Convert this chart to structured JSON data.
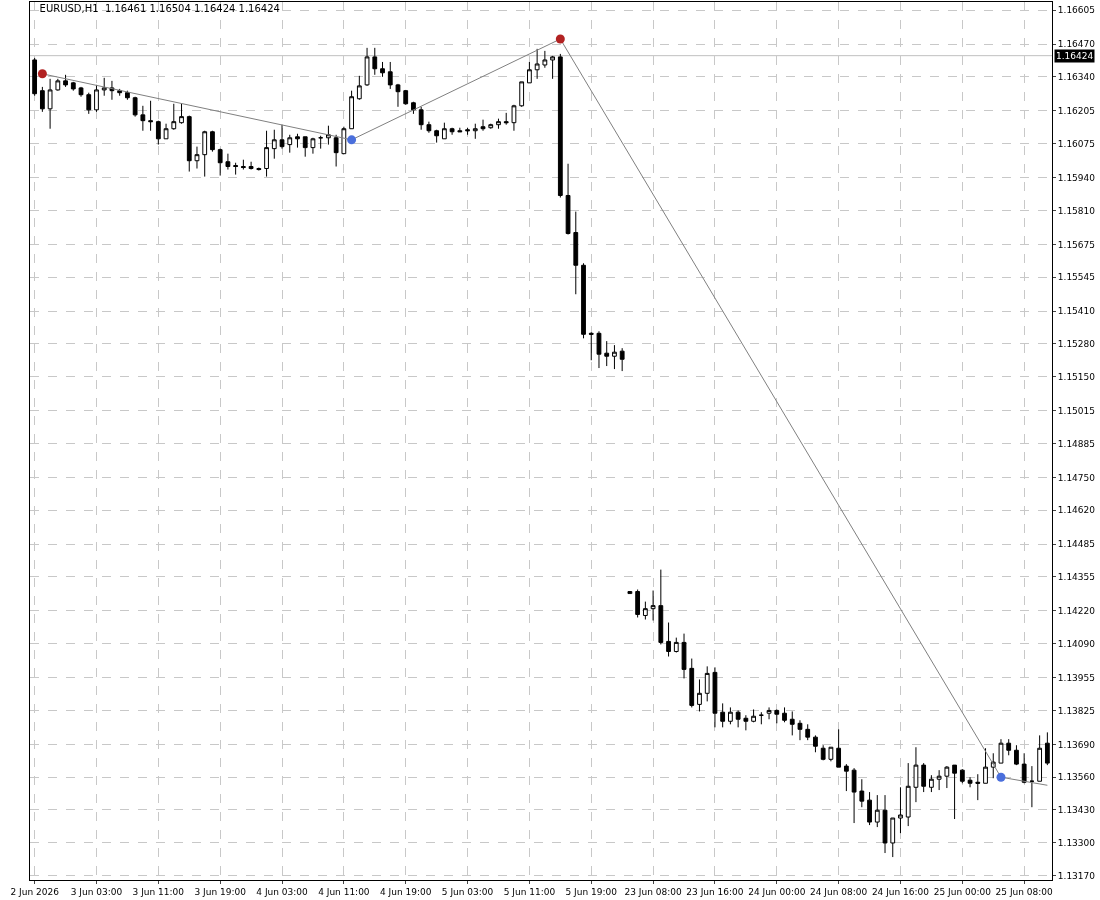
{
  "chart_data": {
    "type": "candlestick",
    "title": "EURUSD,H1  1.16461 1.16504 1.16424 1.16424",
    "categories": [
      "2 Jun 2026",
      null,
      null,
      null,
      null,
      null,
      null,
      null,
      "3 Jun 03:00",
      null,
      null,
      null,
      null,
      null,
      null,
      null,
      "3 Jun 11:00",
      null,
      null,
      null,
      null,
      null,
      null,
      null,
      "3 Jun 19:00",
      null,
      null,
      null,
      null,
      null,
      null,
      null,
      "4 Jun 03:00",
      null,
      null,
      null,
      null,
      null,
      null,
      null,
      "4 Jun 11:00",
      null,
      null,
      null,
      null,
      null,
      null,
      null,
      "4 Jun 19:00",
      null,
      null,
      null,
      null,
      null,
      null,
      null,
      "5 Jun 03:00",
      null,
      null,
      null,
      null,
      null,
      null,
      null,
      "5 Jun 11:00",
      null,
      null,
      null,
      null,
      null,
      null,
      null,
      "5 Jun 19:00",
      null,
      null,
      null,
      null,
      null,
      null,
      null,
      "23 Jun 08:00",
      null,
      null,
      null,
      null,
      null,
      null,
      null,
      "23 Jun 16:00",
      null,
      null,
      null,
      null,
      null,
      null,
      null,
      "24 Jun 00:00",
      null,
      null,
      null,
      null,
      null,
      null,
      null,
      "24 Jun 08:00",
      null,
      null,
      null,
      null,
      null,
      null,
      null,
      "24 Jun 16:00",
      null,
      null,
      null,
      null,
      null,
      null,
      null,
      "25 Jun 00:00",
      null,
      null,
      null,
      null,
      null,
      null,
      null,
      "25 Jun 08:00",
      null,
      null,
      null
    ],
    "ohlc": [
      [
        1.16407,
        1.16415,
        1.16265,
        1.16273
      ],
      [
        1.16285,
        1.163,
        1.16201,
        1.16213
      ],
      [
        1.16213,
        1.16332,
        1.16134,
        1.16288
      ],
      [
        1.16288,
        1.16332,
        1.16285,
        1.16324
      ],
      [
        1.16324,
        1.16348,
        1.163,
        1.16308
      ],
      [
        1.16316,
        1.1632,
        1.16285,
        1.16292
      ],
      [
        1.16296,
        1.163,
        1.16261,
        1.16269
      ],
      [
        1.16269,
        1.16277,
        1.16193,
        1.16209
      ],
      [
        1.16209,
        1.16308,
        1.16201,
        1.16288
      ],
      [
        1.16288,
        1.16336,
        1.16265,
        1.16296
      ],
      [
        1.16296,
        1.16324,
        1.16249,
        1.16285
      ],
      [
        1.16285,
        1.16292,
        1.16265,
        1.16277
      ],
      [
        1.16277,
        1.16285,
        1.16249,
        1.16257
      ],
      [
        1.16257,
        1.16261,
        1.16182,
        1.16189
      ],
      [
        1.16189,
        1.16225,
        1.16126,
        1.16166
      ],
      [
        1.16166,
        1.16245,
        1.16126,
        1.16162
      ],
      [
        1.16162,
        1.16166,
        1.16071,
        1.16094
      ],
      [
        1.16094,
        1.16154,
        1.16094,
        1.16134
      ],
      [
        1.16134,
        1.16233,
        1.1613,
        1.16162
      ],
      [
        1.16158,
        1.16233,
        1.16154,
        1.16182
      ],
      [
        1.16182,
        1.16186,
        1.15964,
        1.16007
      ],
      [
        1.16007,
        1.16063,
        1.15976,
        1.16031
      ],
      [
        1.16031,
        1.16126,
        1.15944,
        1.16122
      ],
      [
        1.16122,
        1.16126,
        1.16043,
        1.16051
      ],
      [
        1.16051,
        1.16055,
        1.15948,
        1.15999
      ],
      [
        1.16003,
        1.16035,
        1.15972,
        1.15984
      ],
      [
        1.15988,
        1.15999,
        1.15952,
        1.15984
      ],
      [
        1.15984,
        1.16011,
        1.15972,
        1.1598
      ],
      [
        1.15984,
        1.16003,
        1.15972,
        1.15976
      ],
      [
        1.15976,
        1.1598,
        1.15968,
        1.15972
      ],
      [
        1.15976,
        1.16126,
        1.15944,
        1.16059
      ],
      [
        1.16055,
        1.1613,
        1.16015,
        1.1609
      ],
      [
        1.1609,
        1.1615,
        1.16055,
        1.16063
      ],
      [
        1.16071,
        1.1611,
        1.16039,
        1.16098
      ],
      [
        1.16102,
        1.16114,
        1.16059,
        1.16094
      ],
      [
        1.16102,
        1.16102,
        1.16023,
        1.16059
      ],
      [
        1.16059,
        1.16098,
        1.16035,
        1.16094
      ],
      [
        1.16098,
        1.16106,
        1.16055,
        1.16098
      ],
      [
        1.16098,
        1.16146,
        1.16071,
        1.1611
      ],
      [
        1.16098,
        1.1611,
        1.15984,
        1.16039
      ],
      [
        1.16035,
        1.16142,
        1.16035,
        1.16134
      ],
      [
        1.16134,
        1.16285,
        1.16134,
        1.16261
      ],
      [
        1.16253,
        1.16344,
        1.16249,
        1.16304
      ],
      [
        1.16308,
        1.16455,
        1.16304,
        1.16419
      ],
      [
        1.16419,
        1.16455,
        1.16348,
        1.16372
      ],
      [
        1.16372,
        1.16399,
        1.1634,
        1.16356
      ],
      [
        1.1636,
        1.16399,
        1.16292,
        1.16308
      ],
      [
        1.16308,
        1.16312,
        1.16221,
        1.16281
      ],
      [
        1.16285,
        1.16288,
        1.16229,
        1.16233
      ],
      [
        1.16237,
        1.16241,
        1.16193,
        1.16209
      ],
      [
        1.16209,
        1.16221,
        1.1613,
        1.1615
      ],
      [
        1.1615,
        1.16162,
        1.16118,
        1.16126
      ],
      [
        1.16126,
        1.1613,
        1.16079,
        1.16106
      ],
      [
        1.16094,
        1.16158,
        1.16094,
        1.16134
      ],
      [
        1.16134,
        1.16138,
        1.1611,
        1.16122
      ],
      [
        1.16126,
        1.16138,
        1.16122,
        1.16122
      ],
      [
        1.1613,
        1.16138,
        1.1611,
        1.16126
      ],
      [
        1.16126,
        1.16154,
        1.16094,
        1.16134
      ],
      [
        1.16142,
        1.1617,
        1.16126,
        1.16134
      ],
      [
        1.16138,
        1.16154,
        1.16134,
        1.1615
      ],
      [
        1.1615,
        1.16174,
        1.16134,
        1.16162
      ],
      [
        1.16162,
        1.16197,
        1.1615,
        1.16158
      ],
      [
        1.16158,
        1.16229,
        1.16126,
        1.16225
      ],
      [
        1.16225,
        1.1632,
        1.16221,
        1.1632
      ],
      [
        1.16316,
        1.16399,
        1.16316,
        1.16368
      ],
      [
        1.16368,
        1.16451,
        1.16332,
        1.16391
      ],
      [
        1.16387,
        1.16443,
        1.16376,
        1.16407
      ],
      [
        1.16407,
        1.16423,
        1.16332,
        1.16419
      ],
      [
        1.16419,
        1.16431,
        1.15861,
        1.15869
      ],
      [
        1.15869,
        1.15995,
        1.15714,
        1.15718
      ],
      [
        1.15722,
        1.15805,
        1.15477,
        1.15592
      ],
      [
        1.15592,
        1.156,
        1.15302,
        1.15318
      ],
      [
        1.15322,
        1.15326,
        1.15215,
        1.15318
      ],
      [
        1.15322,
        1.1533,
        1.15184,
        1.15239
      ],
      [
        1.15243,
        1.15291,
        1.15192,
        1.15231
      ],
      [
        1.15231,
        1.15275,
        1.1518,
        1.15247
      ],
      [
        1.15251,
        1.15263,
        1.15172,
        1.15219
      ],
      [
        1.14289,
        1.14297,
        1.14289,
        1.14297
      ],
      [
        1.14297,
        1.14305,
        1.14194,
        1.14206
      ],
      [
        1.14202,
        1.14257,
        1.14186,
        1.14229
      ],
      [
        1.14229,
        1.14301,
        1.14182,
        1.14241
      ],
      [
        1.14241,
        1.14384,
        1.14087,
        1.14095
      ],
      [
        1.14099,
        1.14174,
        1.14039,
        1.14059
      ],
      [
        1.14059,
        1.14114,
        1.14055,
        1.14095
      ],
      [
        1.14095,
        1.1413,
        1.13952,
        1.13988
      ],
      [
        1.13992,
        1.14031,
        1.13837,
        1.13845
      ],
      [
        1.13849,
        1.13948,
        1.13821,
        1.13893
      ],
      [
        1.13893,
        1.14,
        1.13861,
        1.13972
      ],
      [
        1.13976,
        1.13996,
        1.13758,
        1.13814
      ],
      [
        1.13818,
        1.13853,
        1.13758,
        1.13782
      ],
      [
        1.13782,
        1.13837,
        1.1377,
        1.13818
      ],
      [
        1.13818,
        1.13825,
        1.13758,
        1.1379
      ],
      [
        1.13794,
        1.13806,
        1.13746,
        1.13782
      ],
      [
        1.13782,
        1.13829,
        1.13778,
        1.13802
      ],
      [
        1.13806,
        1.13818,
        1.1377,
        1.13806
      ],
      [
        1.13814,
        1.13837,
        1.1379,
        1.13825
      ],
      [
        1.13825,
        1.13829,
        1.13774,
        1.1381
      ],
      [
        1.13814,
        1.13837,
        1.13778,
        1.13786
      ],
      [
        1.1379,
        1.13821,
        1.13726,
        1.1377
      ],
      [
        1.13774,
        1.13786,
        1.13707,
        1.1375
      ],
      [
        1.1375,
        1.1377,
        1.13707,
        1.13719
      ],
      [
        1.13719,
        1.13726,
        1.13659,
        1.13683
      ],
      [
        1.13675,
        1.13687,
        1.13627,
        1.13631
      ],
      [
        1.13631,
        1.13679,
        1.13623,
        1.13679
      ],
      [
        1.13675,
        1.1375,
        1.136,
        1.136
      ],
      [
        1.13604,
        1.13612,
        1.13505,
        1.13584
      ],
      [
        1.13588,
        1.13596,
        1.13378,
        1.13501
      ],
      [
        1.13505,
        1.13552,
        1.13441,
        1.13465
      ],
      [
        1.13469,
        1.13501,
        1.1337,
        1.13382
      ],
      [
        1.13382,
        1.13489,
        1.13362,
        1.13429
      ],
      [
        1.13429,
        1.13489,
        1.13259,
        1.13299
      ],
      [
        1.13299,
        1.13398,
        1.13243,
        1.13398
      ],
      [
        1.13398,
        1.1352,
        1.13338,
        1.1341
      ],
      [
        1.13402,
        1.13616,
        1.13366,
        1.13524
      ],
      [
        1.1352,
        1.13679,
        1.13461,
        1.13608
      ],
      [
        1.13608,
        1.13616,
        1.13501,
        1.13524
      ],
      [
        1.1352,
        1.13568,
        1.13501,
        1.13552
      ],
      [
        1.13552,
        1.13588,
        1.13509,
        1.13564
      ],
      [
        1.13564,
        1.13604,
        1.13517,
        1.136
      ],
      [
        1.13608,
        1.13608,
        1.13394,
        1.13576
      ],
      [
        1.13588,
        1.13592,
        1.13536,
        1.13544
      ],
      [
        1.13548,
        1.1356,
        1.1352,
        1.13536
      ],
      [
        1.1354,
        1.13572,
        1.13469,
        1.13536
      ],
      [
        1.13536,
        1.13675,
        1.13536,
        1.136
      ],
      [
        1.136,
        1.13655,
        1.13556,
        1.1362
      ],
      [
        1.13616,
        1.13711,
        1.13616,
        1.13695
      ],
      [
        1.13695,
        1.13711,
        1.13647,
        1.13667
      ],
      [
        1.13667,
        1.13687,
        1.13608,
        1.13612
      ],
      [
        1.13612,
        1.13655,
        1.13536,
        1.1354
      ],
      [
        1.13544,
        1.13604,
        1.13441,
        1.13544
      ],
      [
        1.13544,
        1.13726,
        1.13544,
        1.13675
      ],
      [
        1.13695,
        1.13738,
        1.13608,
        1.13616
      ]
    ],
    "color": "#000000",
    "series": [
      {
        "type": "line",
        "color": "#808080",
        "marker": "none",
        "line_style": "solid",
        "values": [
          null,
          1.16352,
          null,
          null,
          null,
          null,
          null,
          null,
          null,
          null,
          null,
          null,
          null,
          null,
          null,
          null,
          null,
          null,
          null,
          null,
          null,
          null,
          null,
          null,
          null,
          null,
          null,
          null,
          null,
          null,
          null,
          null,
          null,
          null,
          null,
          null,
          null,
          null,
          null,
          null,
          null,
          1.1609,
          null,
          null,
          null,
          null,
          null,
          null,
          null,
          null,
          null,
          null,
          null,
          null,
          null,
          null,
          null,
          null,
          null,
          null,
          null,
          null,
          null,
          null,
          null,
          null,
          null,
          null,
          1.1649,
          null,
          null,
          null,
          null,
          null,
          null,
          null,
          null,
          null,
          null,
          null,
          null,
          null,
          null,
          null,
          null,
          null,
          null,
          null,
          null,
          null,
          null,
          null,
          null,
          null,
          null,
          null,
          null,
          null,
          null,
          null,
          null,
          null,
          null,
          null,
          null,
          null,
          null,
          null,
          null,
          null,
          null,
          null,
          null,
          null,
          null,
          null,
          null,
          null,
          null,
          null,
          null,
          null,
          null,
          null,
          null,
          1.1356,
          null,
          null,
          null,
          null,
          null,
          1.13528
        ]
      },
      {
        "type": "scatter",
        "color": "#b22222",
        "marker": "circle",
        "values": [
          null,
          1.16352,
          null,
          null,
          null,
          null,
          null,
          null,
          null,
          null,
          null,
          null,
          null,
          null,
          null,
          null,
          null,
          null,
          null,
          null,
          null,
          null,
          null,
          null,
          null,
          null,
          null,
          null,
          null,
          null,
          null,
          null,
          null,
          null,
          null,
          null,
          null,
          null,
          null,
          null,
          null,
          null,
          null,
          null,
          null,
          null,
          null,
          null,
          null,
          null,
          null,
          null,
          null,
          null,
          null,
          null,
          null,
          null,
          null,
          null,
          null,
          null,
          null,
          null,
          null,
          null,
          null,
          null,
          1.1649,
          null,
          null,
          null,
          null,
          null,
          null,
          null,
          null,
          null,
          null,
          null,
          null,
          null,
          null,
          null,
          null,
          null,
          null,
          null,
          null,
          null,
          null,
          null,
          null,
          null,
          null,
          null,
          null,
          null,
          null,
          null,
          null,
          null,
          null,
          null,
          null,
          null,
          null,
          null,
          null,
          null,
          null,
          null,
          null,
          null,
          null,
          null,
          null,
          null,
          null,
          null,
          null,
          null,
          null,
          null,
          null,
          null,
          null,
          null,
          null,
          null,
          null,
          null
        ]
      },
      {
        "type": "scatter",
        "color": "#4a6fdc",
        "marker": "circle",
        "values": [
          null,
          null,
          null,
          null,
          null,
          null,
          null,
          null,
          null,
          null,
          null,
          null,
          null,
          null,
          null,
          null,
          null,
          null,
          null,
          null,
          null,
          null,
          null,
          null,
          null,
          null,
          null,
          null,
          null,
          null,
          null,
          null,
          null,
          null,
          null,
          null,
          null,
          null,
          null,
          null,
          null,
          1.1609,
          null,
          null,
          null,
          null,
          null,
          null,
          null,
          null,
          null,
          null,
          null,
          null,
          null,
          null,
          null,
          null,
          null,
          null,
          null,
          null,
          null,
          null,
          null,
          null,
          null,
          null,
          null,
          null,
          null,
          null,
          null,
          null,
          null,
          null,
          null,
          null,
          null,
          null,
          null,
          null,
          null,
          null,
          null,
          null,
          null,
          null,
          null,
          null,
          null,
          null,
          null,
          null,
          null,
          null,
          null,
          null,
          null,
          null,
          null,
          null,
          null,
          null,
          null,
          null,
          null,
          null,
          null,
          null,
          null,
          null,
          null,
          null,
          null,
          null,
          null,
          null,
          null,
          null,
          null,
          null,
          null,
          null,
          null,
          1.1356,
          null,
          null,
          null,
          null,
          null,
          null
        ]
      }
    ],
    "ylim": [
      1.13152,
      1.16637
    ],
    "yticks": [
      1.16605,
      {
        "value": 1.1647,
        "label": "1.16470"
      },
      {
        "value": 1.1634,
        "label": "1.16340"
      },
      1.16205,
      1.16075,
      {
        "value": 1.1594,
        "label": "1.15940"
      },
      {
        "value": 1.1581,
        "label": "1.15810"
      },
      1.15675,
      1.15545,
      {
        "value": 1.1541,
        "label": "1.15410"
      },
      {
        "value": 1.1528,
        "label": "1.15280"
      },
      {
        "value": 1.1515,
        "label": "1.15150"
      },
      1.15015,
      1.14885,
      {
        "value": 1.1475,
        "label": "1.14750"
      },
      {
        "value": 1.1462,
        "label": "1.14620"
      },
      1.14485,
      1.14355,
      {
        "value": 1.1422,
        "label": "1.14220"
      },
      {
        "value": 1.1409,
        "label": "1.14090"
      },
      1.13955,
      1.13825,
      {
        "value": 1.1369,
        "label": "1.13690"
      },
      {
        "value": 1.1356,
        "label": "1.13560"
      },
      {
        "value": 1.1343,
        "label": "1.13430"
      },
      {
        "value": 1.133,
        "label": "1.13300"
      },
      {
        "value": 1.1317,
        "label": "1.13170"
      }
    ],
    "ref_lines": [
      {
        "axis": "y",
        "value": 1.16424,
        "label": "1.16424",
        "color": "#c0c0c0"
      }
    ],
    "grid": true
  }
}
